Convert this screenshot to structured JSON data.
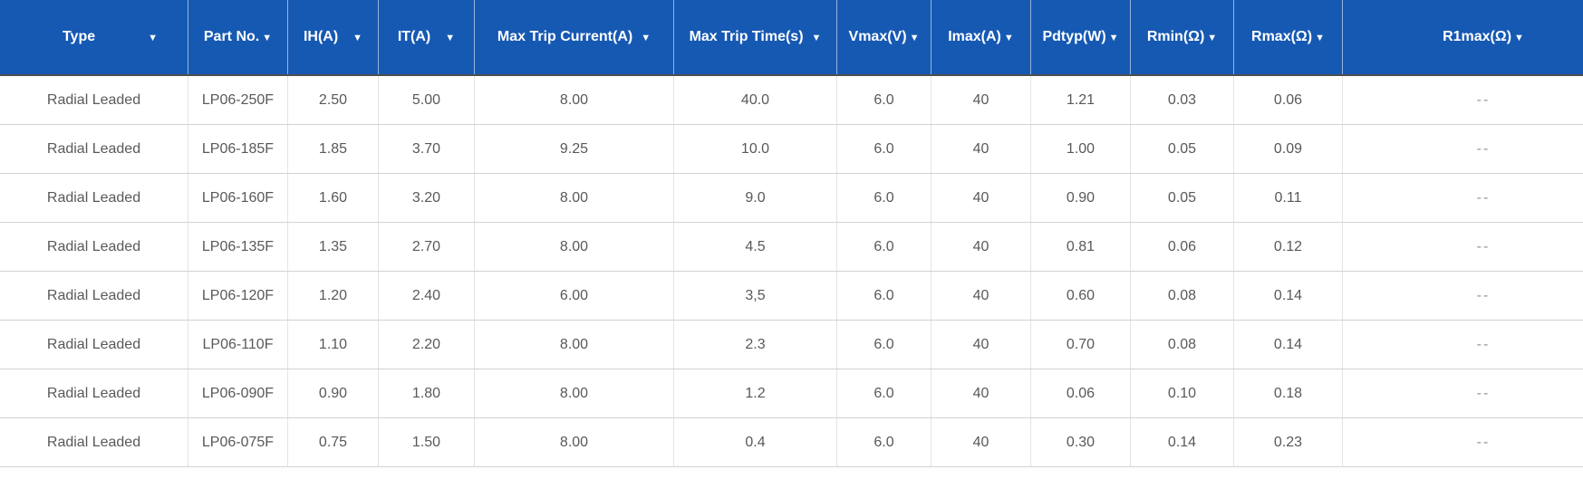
{
  "table": {
    "sort_arrow_glyph": "▼",
    "columns": [
      {
        "label": "Type"
      },
      {
        "label": "Part No."
      },
      {
        "label": "IH(A)"
      },
      {
        "label": "IT(A)"
      },
      {
        "label": "Max Trip Current(A)"
      },
      {
        "label": "Max Trip Time(s)"
      },
      {
        "label": "Vmax(V)"
      },
      {
        "label": "Imax(A)"
      },
      {
        "label": "Pdtyp(W)"
      },
      {
        "label": "Rmin(Ω)"
      },
      {
        "label": "Rmax(Ω)"
      },
      {
        "label": "R1max(Ω)"
      }
    ],
    "rows": [
      [
        "Radial Leaded",
        "LP06-250F",
        "2.50",
        "5.00",
        "8.00",
        "40.0",
        "6.0",
        "40",
        "1.21",
        "0.03",
        "0.06",
        "--"
      ],
      [
        "Radial Leaded",
        "LP06-185F",
        "1.85",
        "3.70",
        "9.25",
        "10.0",
        "6.0",
        "40",
        "1.00",
        "0.05",
        "0.09",
        "--"
      ],
      [
        "Radial Leaded",
        "LP06-160F",
        "1.60",
        "3.20",
        "8.00",
        "9.0",
        "6.0",
        "40",
        "0.90",
        "0.05",
        "0.11",
        "--"
      ],
      [
        "Radial Leaded",
        "LP06-135F",
        "1.35",
        "2.70",
        "8.00",
        "4.5",
        "6.0",
        "40",
        "0.81",
        "0.06",
        "0.12",
        "--"
      ],
      [
        "Radial Leaded",
        "LP06-120F",
        "1.20",
        "2.40",
        "6.00",
        "3,5",
        "6.0",
        "40",
        "0.60",
        "0.08",
        "0.14",
        "--"
      ],
      [
        "Radial Leaded",
        "LP06-110F",
        "1.10",
        "2.20",
        "8.00",
        "2.3",
        "6.0",
        "40",
        "0.70",
        "0.08",
        "0.14",
        "--"
      ],
      [
        "Radial Leaded",
        "LP06-090F",
        "0.90",
        "1.80",
        "8.00",
        "1.2",
        "6.0",
        "40",
        "0.06",
        "0.10",
        "0.18",
        "--"
      ],
      [
        "Radial Leaded",
        "LP06-075F",
        "0.75",
        "1.50",
        "8.00",
        "0.4",
        "6.0",
        "40",
        "0.30",
        "0.14",
        "0.23",
        "--"
      ]
    ],
    "colors": {
      "header_bg": "#1659b3",
      "header_text": "#ffffff",
      "header_divider": "#4e4e50",
      "body_text": "#595959",
      "row_border": "#d2d2d2",
      "column_border": "#e4e4e4",
      "na_text": "#969696",
      "scrollbar_thumb": "#c8c8c8"
    }
  }
}
